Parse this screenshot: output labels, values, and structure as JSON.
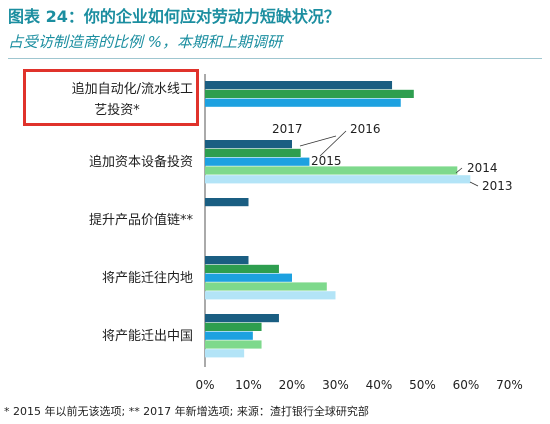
{
  "title": "图表 24：你的企业如何应对劳动力短缺状况？",
  "subtitle": "占受访制造商的比例 %，本期和上期调研",
  "footnote": "* 2015 年以前无该选项; ** 2017 年新增选项; 来源：渣打银行全球研究部",
  "colors": {
    "2017": "#1a5e82",
    "2016": "#2e9e4f",
    "2015": "#1da1e0",
    "2014": "#7ed98c",
    "2013": "#b3e4f7",
    "title": "#1b8ea0",
    "highlight": "#e0322b"
  },
  "chart_data": {
    "type": "bar",
    "orientation": "horizontal",
    "title": "图表 24：你的企业如何应对劳动力短缺状况？",
    "subtitle": "占受访制造商的比例 %，本期和上期调研",
    "categories": [
      {
        "line1": "追加自动化/流水线工",
        "line2": "艺投资*"
      },
      {
        "line1": "追加资本设备投资",
        "line2": ""
      },
      {
        "line1": "提升产品价值链**",
        "line2": ""
      },
      {
        "line1": "将产能迁往内地",
        "line2": ""
      },
      {
        "line1": "将产能迁出中国",
        "line2": ""
      }
    ],
    "series": [
      {
        "name": "2017",
        "values": [
          43,
          20,
          10,
          10,
          17
        ]
      },
      {
        "name": "2016",
        "values": [
          48,
          22,
          null,
          17,
          13
        ]
      },
      {
        "name": "2015",
        "values": [
          45,
          24,
          null,
          20,
          11
        ]
      },
      {
        "name": "2014",
        "values": [
          null,
          58,
          null,
          28,
          13
        ]
      },
      {
        "name": "2013",
        "values": [
          null,
          61,
          null,
          30,
          9
        ]
      }
    ],
    "series_labels": [
      "2017",
      "2016",
      "2015",
      "2014",
      "2013"
    ],
    "xlim": [
      0,
      70
    ],
    "xticks": [
      "0%",
      "10%",
      "20%",
      "30%",
      "40%",
      "50%",
      "60%",
      "70%"
    ],
    "grid": false,
    "legend": "inline labels at bar ends of second category"
  }
}
